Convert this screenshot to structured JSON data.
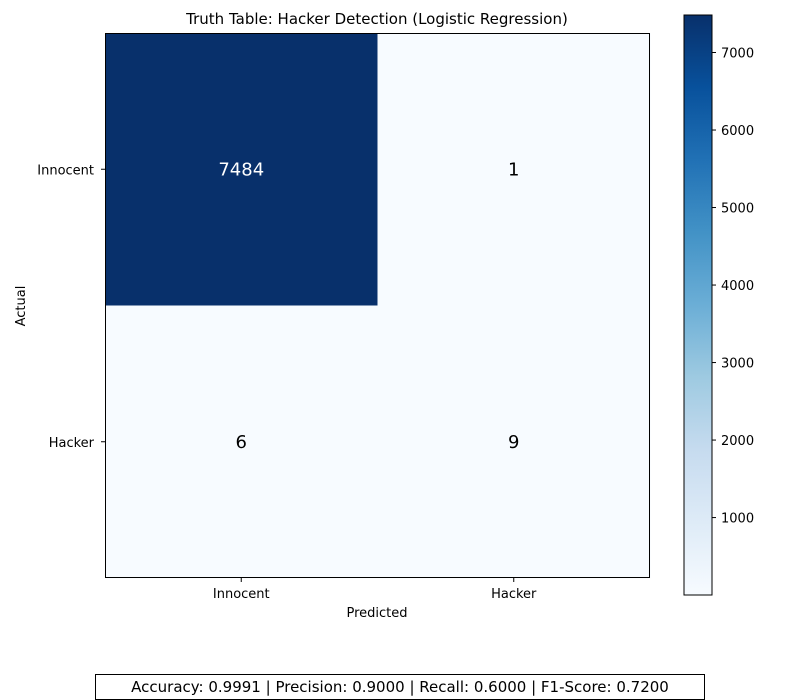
{
  "chart_data": {
    "type": "heatmap",
    "title": "Truth Table: Hacker Detection (Logistic Regression)",
    "xlabel": "Predicted",
    "ylabel": "Actual",
    "x_categories": [
      "Innocent",
      "Hacker"
    ],
    "y_categories": [
      "Innocent",
      "Hacker"
    ],
    "matrix": [
      [
        7484,
        1
      ],
      [
        6,
        9
      ]
    ],
    "colormap": "Blues",
    "colorbar": {
      "range": [
        1,
        7484
      ],
      "ticks": [
        1000,
        2000,
        3000,
        4000,
        5000,
        6000,
        7000
      ]
    },
    "grid": false
  },
  "footer": {
    "metrics_text": "Accuracy: 0.9991 | Precision: 0.9000 | Recall: 0.6000 | F1-Score: 0.7200"
  }
}
